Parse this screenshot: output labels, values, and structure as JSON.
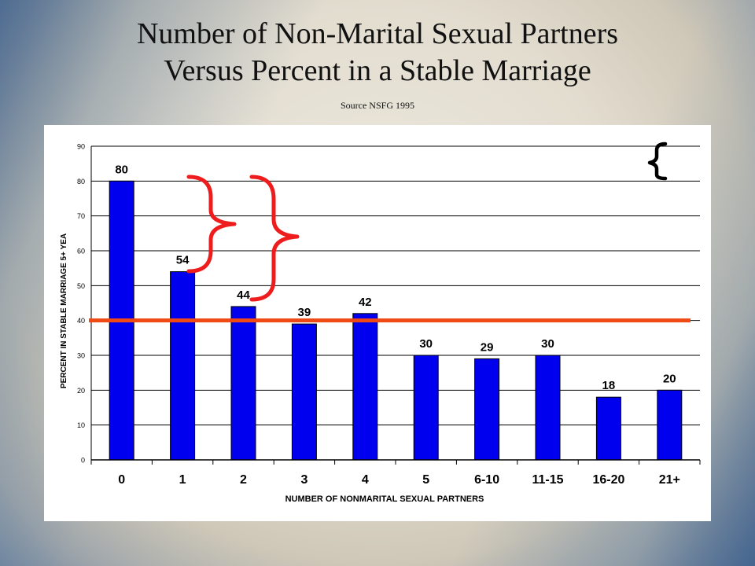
{
  "slide": {
    "title_line1": "Number of Non-Marital Sexual Partners",
    "title_line2": "Versus Percent in a Stable Marriage",
    "source": "Source NSFG 1995"
  },
  "chart_data": {
    "type": "bar",
    "categories": [
      "0",
      "1",
      "2",
      "3",
      "4",
      "5",
      "6-10",
      "11-15",
      "16-20",
      "21+"
    ],
    "values": [
      80,
      54,
      44,
      39,
      42,
      30,
      29,
      30,
      18,
      20
    ],
    "data_labels": [
      "80",
      "54",
      "44",
      "39",
      "42",
      "30",
      "29",
      "30",
      "18",
      "20"
    ],
    "xlabel": "NUMBER OF NONMARITAL SEXUAL PARTNERS",
    "ylabel": "PERCENT IN STABLE MARRIAGE 5+ YEA",
    "ylim": [
      0,
      90
    ],
    "yticks": [
      0,
      10,
      20,
      30,
      40,
      50,
      60,
      70,
      80,
      90
    ],
    "grid": true,
    "legend": "none",
    "reference_line": {
      "value": 40,
      "color": "#f04a14"
    },
    "bar_color": "#0000ee",
    "annotation_color_red": "#ee1c1c",
    "annotation_color_black": "#000000"
  }
}
